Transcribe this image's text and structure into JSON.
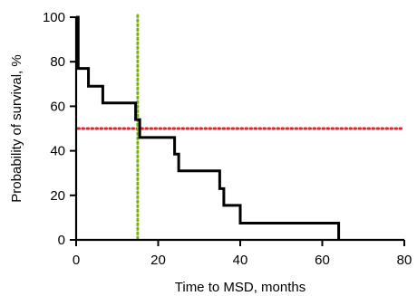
{
  "chart_data": {
    "type": "line",
    "title": "",
    "xlabel": "Time to MSD, months",
    "ylabel": "Probability of survival, %",
    "xlim": [
      0,
      80
    ],
    "ylim": [
      0,
      100
    ],
    "xticks": [
      0,
      20,
      40,
      60,
      80
    ],
    "yticks": [
      0,
      20,
      40,
      60,
      80,
      100
    ],
    "grid": false,
    "step": true,
    "series": [
      {
        "color": "#000000",
        "x": [
          0,
          0.5,
          3,
          6.5,
          14.5,
          15.5,
          24,
          25,
          35,
          36,
          40,
          64
        ],
        "y": [
          100,
          77,
          69,
          61.5,
          54,
          46,
          38.5,
          31,
          23,
          15.5,
          7.5,
          0
        ]
      }
    ],
    "reference_lines": [
      {
        "orientation": "horizontal",
        "value": 50,
        "color": "#e0252a",
        "style": "dotted"
      },
      {
        "orientation": "vertical",
        "value": 15,
        "color": "#7ab317",
        "style": "dotted"
      }
    ]
  }
}
